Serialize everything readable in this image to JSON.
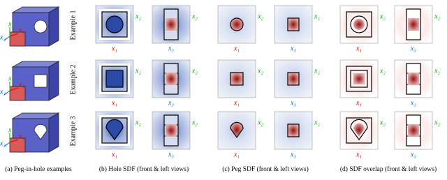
{
  "examples": [
    "Example 1",
    "Example 2",
    "Example 3"
  ],
  "captions": [
    "(a) Peg-in-hole examples",
    "(b) Hole SDF (front & left views)",
    "(c) Peg SDF (front & left views)",
    "(d) SDF overlap (front & left views)"
  ],
  "axis_labels": {
    "x1": "x₁",
    "x2": "x₂",
    "x3": "x₃"
  }
}
